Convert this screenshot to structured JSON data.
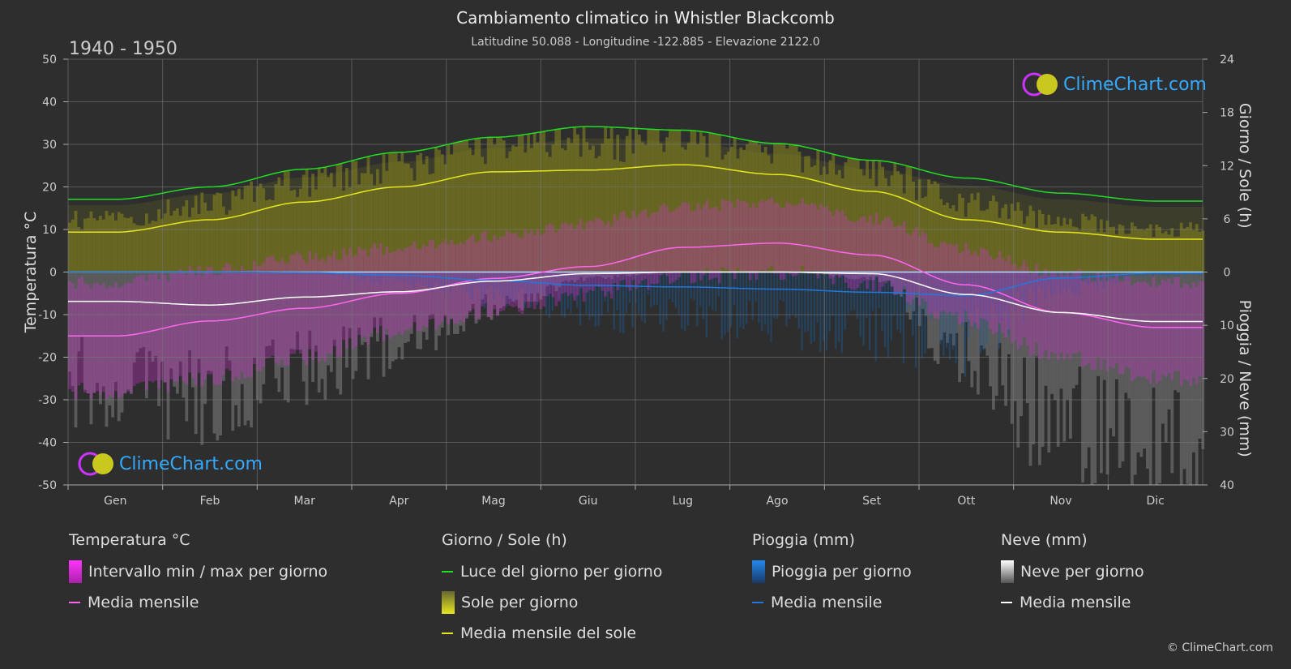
{
  "header": {
    "title": "Cambiamento climatico in Whistler Blackcomb",
    "subtitle": "Latitudine 50.088 - Longitudine -122.885 - Elevazione 2122.0",
    "period": "1940 - 1950"
  },
  "axes": {
    "left_label": "Temperatura °C",
    "right_top_label": "Giorno / Sole (h)",
    "right_bottom_label": "Pioggia / Neve (mm)"
  },
  "logo": {
    "text": "ClimeChart.com"
  },
  "copyright": "© ClimeChart.com",
  "colors": {
    "background": "#2e2e2e",
    "daylight": "#22dd22",
    "sunshine_line": "#e6e61e",
    "sunshine_fill": "#8a8a1e",
    "temp_line": "#ff66ee",
    "temp_range": "#cc33cc",
    "rain_line": "#2277dd",
    "rain_fill": "#1a5a99",
    "snow_line": "#ffffff",
    "snow_fill": "#888888"
  },
  "legend": {
    "temperature": {
      "title": "Temperatura °C",
      "range": "Intervallo min / max per giorno",
      "mean": "Media mensile"
    },
    "sun": {
      "title": "Giorno / Sole (h)",
      "daylight": "Luce del giorno per giorno",
      "sunshine": "Sole per giorno",
      "sun_mean": "Media mensile del sole"
    },
    "rain": {
      "title": "Pioggia (mm)",
      "daily": "Pioggia per giorno",
      "mean": "Media mensile"
    },
    "snow": {
      "title": "Neve (mm)",
      "daily": "Neve per giorno",
      "mean": "Media mensile"
    }
  },
  "chart_data": {
    "type": "line",
    "categories": [
      "Gen",
      "Feb",
      "Mar",
      "Apr",
      "Mag",
      "Giu",
      "Lug",
      "Ago",
      "Set",
      "Ott",
      "Nov",
      "Dic"
    ],
    "left_axis": {
      "label": "Temperatura °C",
      "range": [
        -50,
        50
      ],
      "ticks": [
        50,
        40,
        30,
        20,
        10,
        0,
        -10,
        -20,
        -30,
        -40,
        -50
      ]
    },
    "right_top_axis": {
      "label": "Giorno / Sole (h)",
      "range": [
        0,
        24
      ],
      "ticks": [
        24,
        18,
        12,
        6,
        0
      ]
    },
    "right_bottom_axis": {
      "label": "Pioggia / Neve (mm)",
      "range": [
        0,
        40
      ],
      "ticks": [
        0,
        10,
        20,
        30,
        40
      ]
    },
    "series": [
      {
        "name": "Luce del giorno per giorno",
        "axis": "hours",
        "values": [
          8.2,
          9.6,
          11.6,
          13.5,
          15.2,
          16.4,
          16.0,
          14.5,
          12.6,
          10.6,
          8.9,
          8.0
        ]
      },
      {
        "name": "Media mensile del sole",
        "axis": "hours",
        "values": [
          4.5,
          5.9,
          7.9,
          9.6,
          11.3,
          11.5,
          12.1,
          11.0,
          9.1,
          5.9,
          4.5,
          3.7
        ]
      },
      {
        "name": "Temperatura media mensile",
        "axis": "temperature",
        "values": [
          -15.0,
          -11.5,
          -8.5,
          -5.0,
          -1.5,
          1.3,
          5.8,
          6.8,
          4.0,
          -3.0,
          -9.5,
          -13.0
        ]
      },
      {
        "name": "Neve media mensile",
        "axis": "precipitation",
        "values": [
          5.5,
          6.2,
          4.7,
          3.7,
          1.7,
          0.3,
          0.0,
          0.0,
          0.3,
          4.2,
          7.6,
          9.3
        ]
      },
      {
        "name": "Pioggia media mensile",
        "axis": "precipitation",
        "values": [
          0.0,
          0.0,
          0.1,
          0.6,
          1.6,
          2.5,
          2.8,
          3.2,
          3.8,
          4.4,
          1.1,
          0.2
        ]
      }
    ],
    "temperature_range": {
      "min": [
        -26,
        -23,
        -18,
        -12,
        -7,
        -3,
        1,
        2,
        -1,
        -9,
        -18,
        -23
      ],
      "max": [
        -4,
        -1,
        2,
        4,
        7,
        10,
        14,
        15,
        11,
        4,
        -2,
        -4
      ]
    },
    "grid": true
  }
}
